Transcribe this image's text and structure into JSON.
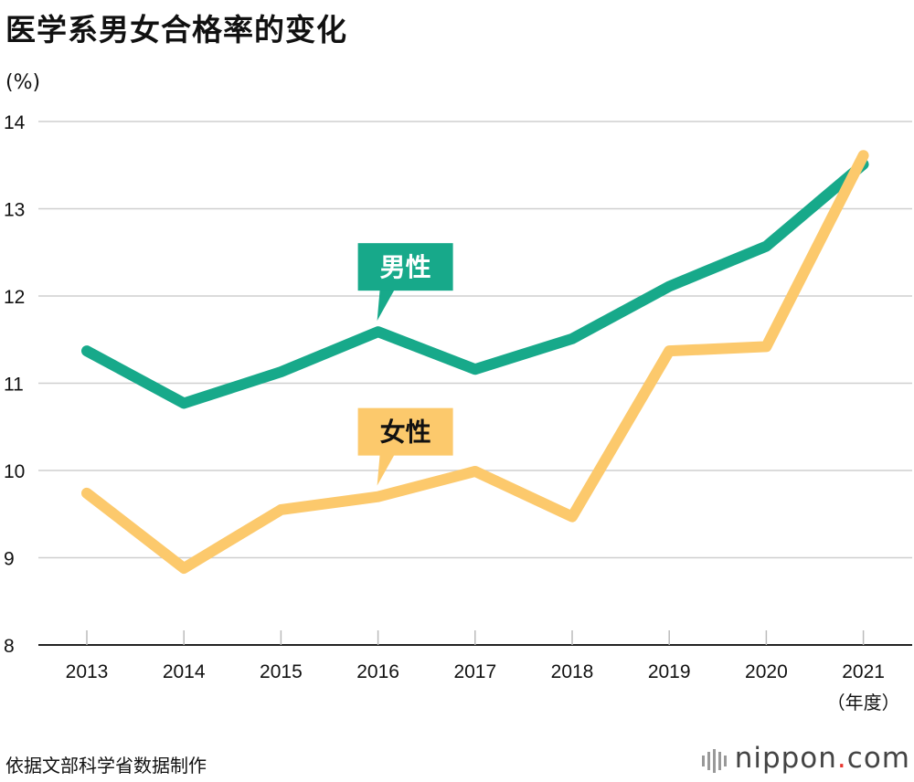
{
  "title": "医学系男女合格率的变化",
  "source": "依据文部科学省数据制作",
  "logo": {
    "name": "nippon",
    "dot": ".",
    "suffix": "com"
  },
  "chart_data": {
    "type": "line",
    "title": "医学系男女合格率的变化",
    "ylabel": "(%)",
    "xlabel": "（年度）",
    "ylim": [
      8,
      14
    ],
    "yticks": [
      8,
      9,
      10,
      11,
      12,
      13,
      14
    ],
    "grid": true,
    "categories": [
      "2013",
      "2014",
      "2015",
      "2016",
      "2017",
      "2018",
      "2019",
      "2020",
      "2021"
    ],
    "series": [
      {
        "name": "男性",
        "color": "#17a98a",
        "values": [
          11.37,
          10.77,
          11.13,
          11.59,
          11.16,
          11.51,
          12.11,
          12.57,
          13.51
        ]
      },
      {
        "name": "女性",
        "color": "#fcc96c",
        "values": [
          9.74,
          8.88,
          9.55,
          9.7,
          9.99,
          9.47,
          11.37,
          11.42,
          13.61
        ]
      }
    ],
    "annotations": [
      {
        "series": "男性",
        "text": "男性"
      },
      {
        "series": "女性",
        "text": "女性"
      }
    ]
  }
}
